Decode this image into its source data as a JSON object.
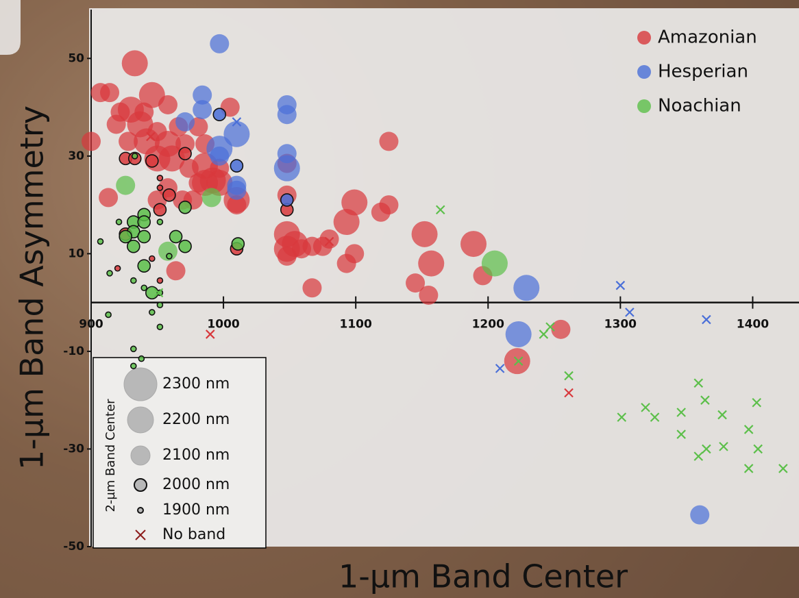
{
  "chart_data": {
    "type": "scatter",
    "x_label": "1-µm Band Center",
    "y_label": "1-µm Band Asymmetry",
    "xlim": [
      900,
      1435
    ],
    "ylim": [
      -50,
      60
    ],
    "xticks": [
      900,
      1000,
      1100,
      1200,
      1300,
      1400
    ],
    "yticks": [
      -50,
      -30,
      -10,
      10,
      30,
      50
    ],
    "legend_position": "upper right",
    "series": [
      {
        "name": "Amazonian",
        "color": "#d8383c",
        "x": [
          933,
          907,
          914,
          946,
          922,
          930,
          940,
          958,
          919,
          937,
          950,
          966,
          981,
          1005,
          928,
          942,
          958,
          971,
          900,
          986,
          950,
          961,
          974,
          986,
          981,
          992,
          997,
          986,
          1010,
          1010,
          997,
          958,
          950,
          977,
          969,
          913,
          1125,
          964,
          1048,
          1048,
          1048,
          1099,
          1125,
          1119,
          1093,
          1048,
          1054,
          1048,
          1048,
          1059,
          1075,
          1080,
          1067,
          1099,
          1093,
          1067,
          1010,
          1152,
          1157,
          1145,
          1155,
          1189,
          1196,
          1222,
          1255,
          946,
          920,
          926,
          933,
          946,
          952,
          971,
          926,
          952,
          952,
          952,
          959,
          945,
          1080,
          990,
          1261
        ],
        "values": [
          49,
          43,
          43,
          42.5,
          39,
          39.5,
          39,
          40.5,
          36.5,
          36.5,
          35,
          36,
          36,
          40,
          33,
          33,
          32.5,
          32.5,
          33,
          32.5,
          29.5,
          29.5,
          27.5,
          28,
          24.5,
          25,
          24.5,
          24.5,
          21,
          20,
          27.5,
          23.5,
          21,
          21,
          21,
          21.5,
          33,
          6.5,
          28.5,
          22,
          19,
          20.5,
          20,
          18.5,
          16.5,
          14,
          12,
          11,
          9.5,
          11,
          11.5,
          13,
          11.5,
          10,
          8,
          3,
          11,
          14,
          8,
          4,
          1.5,
          12,
          5.5,
          -12,
          -5.5,
          9,
          7,
          29.5,
          29.5,
          29,
          19,
          30.5,
          14,
          25.5,
          23.5,
          4.5,
          22,
          34,
          12.5,
          -6.5,
          -18.5
        ],
        "sizes": [
          2200,
          2100,
          2100,
          2200,
          2100,
          2200,
          2100,
          2100,
          2100,
          2200,
          2100,
          2100,
          2100,
          2100,
          2100,
          2200,
          2200,
          2100,
          2100,
          2100,
          2200,
          2200,
          2100,
          2200,
          2100,
          2200,
          2200,
          2200,
          2200,
          2100,
          2100,
          2100,
          2100,
          2100,
          2100,
          2100,
          2100,
          2100,
          2100,
          2100,
          2000,
          2200,
          2100,
          2100,
          2200,
          2200,
          2200,
          2200,
          2100,
          2100,
          2100,
          2100,
          2100,
          2100,
          2100,
          2100,
          2000,
          2200,
          2200,
          2100,
          2100,
          2200,
          2100,
          2200,
          2100,
          1900,
          1900,
          2000,
          2000,
          2000,
          2000,
          2000,
          2000,
          1900,
          1900,
          1900,
          2000,
          null,
          null,
          null,
          null
        ]
      },
      {
        "name": "Hesperian",
        "color": "#4a6fd8",
        "x": [
          997,
          984,
          984,
          971,
          997,
          1010,
          997,
          997,
          1010,
          1010,
          1010,
          1048,
          1048,
          1048,
          1048,
          1048,
          1229,
          1223,
          1360,
          1010,
          1209,
          1300,
          1307,
          1365
        ],
        "values": [
          53,
          42.5,
          39.5,
          37,
          38.5,
          34.5,
          31.5,
          30,
          28,
          24,
          23,
          40.5,
          38.5,
          30.5,
          27.5,
          21,
          3,
          -6.5,
          -43.5,
          37,
          -13.5,
          3.5,
          -2,
          -3.5
        ],
        "sizes": [
          2100,
          2100,
          2100,
          2100,
          2000,
          2200,
          2200,
          2100,
          2000,
          2100,
          2100,
          2100,
          2100,
          2100,
          2200,
          2000,
          2200,
          2200,
          2100,
          null,
          null,
          null,
          null,
          null
        ]
      },
      {
        "name": "Noachian",
        "color": "#5cbf4a",
        "x": [
          926,
          991,
          971,
          958,
          1011,
          1205,
          933,
          940,
          932,
          940,
          921,
          952,
          932,
          940,
          926,
          932,
          907,
          964,
          971,
          959,
          940,
          914,
          932,
          940,
          946,
          952,
          952,
          913,
          946,
          952,
          932,
          938,
          932,
          1164,
          951,
          1242,
          1247,
          1223,
          1261,
          1301,
          1319,
          1326,
          1346,
          1346,
          1359,
          1364,
          1377,
          1403,
          1397,
          1404,
          1378,
          1365,
          1359,
          1397,
          1423
        ],
        "values": [
          24,
          21.5,
          19.5,
          10.5,
          12,
          8,
          30,
          18,
          16.5,
          16.5,
          16.5,
          16.5,
          14.5,
          13.5,
          13.5,
          11.5,
          12.5,
          13.5,
          11.5,
          9.5,
          7.5,
          6,
          4.5,
          3,
          2,
          2,
          -0.5,
          -2.5,
          -2,
          -5,
          -9.5,
          -11.5,
          -13,
          19,
          2,
          -6.5,
          -5,
          -12,
          -15,
          -23.5,
          -21.5,
          -23.5,
          -22.5,
          -27,
          -16.5,
          -20,
          -23,
          -20.5,
          -26,
          -30,
          -29.5,
          -30,
          -31.5,
          -34,
          -34
        ],
        "sizes": [
          2100,
          2100,
          2000,
          2100,
          2000,
          2200,
          1900,
          2000,
          2000,
          2000,
          1900,
          1900,
          2000,
          2000,
          2000,
          2000,
          1900,
          2000,
          2000,
          1900,
          2000,
          1900,
          1900,
          1900,
          2000,
          1900,
          1900,
          1900,
          1900,
          1900,
          1900,
          1900,
          1900,
          null,
          null,
          null,
          null,
          null,
          null,
          null,
          null,
          null,
          null,
          null,
          null,
          null,
          null,
          null,
          null,
          null,
          null,
          null,
          null,
          null,
          null
        ]
      }
    ],
    "size_legend": {
      "title": "2-µm Band Center",
      "items": [
        {
          "value": 2300,
          "label": "2300 nm"
        },
        {
          "value": 2200,
          "label": "2200 nm"
        },
        {
          "value": 2100,
          "label": "2100 nm"
        },
        {
          "value": 2000,
          "label": "2000 nm"
        },
        {
          "value": 1900,
          "label": "1900 nm"
        },
        {
          "label": "No band"
        }
      ]
    }
  }
}
